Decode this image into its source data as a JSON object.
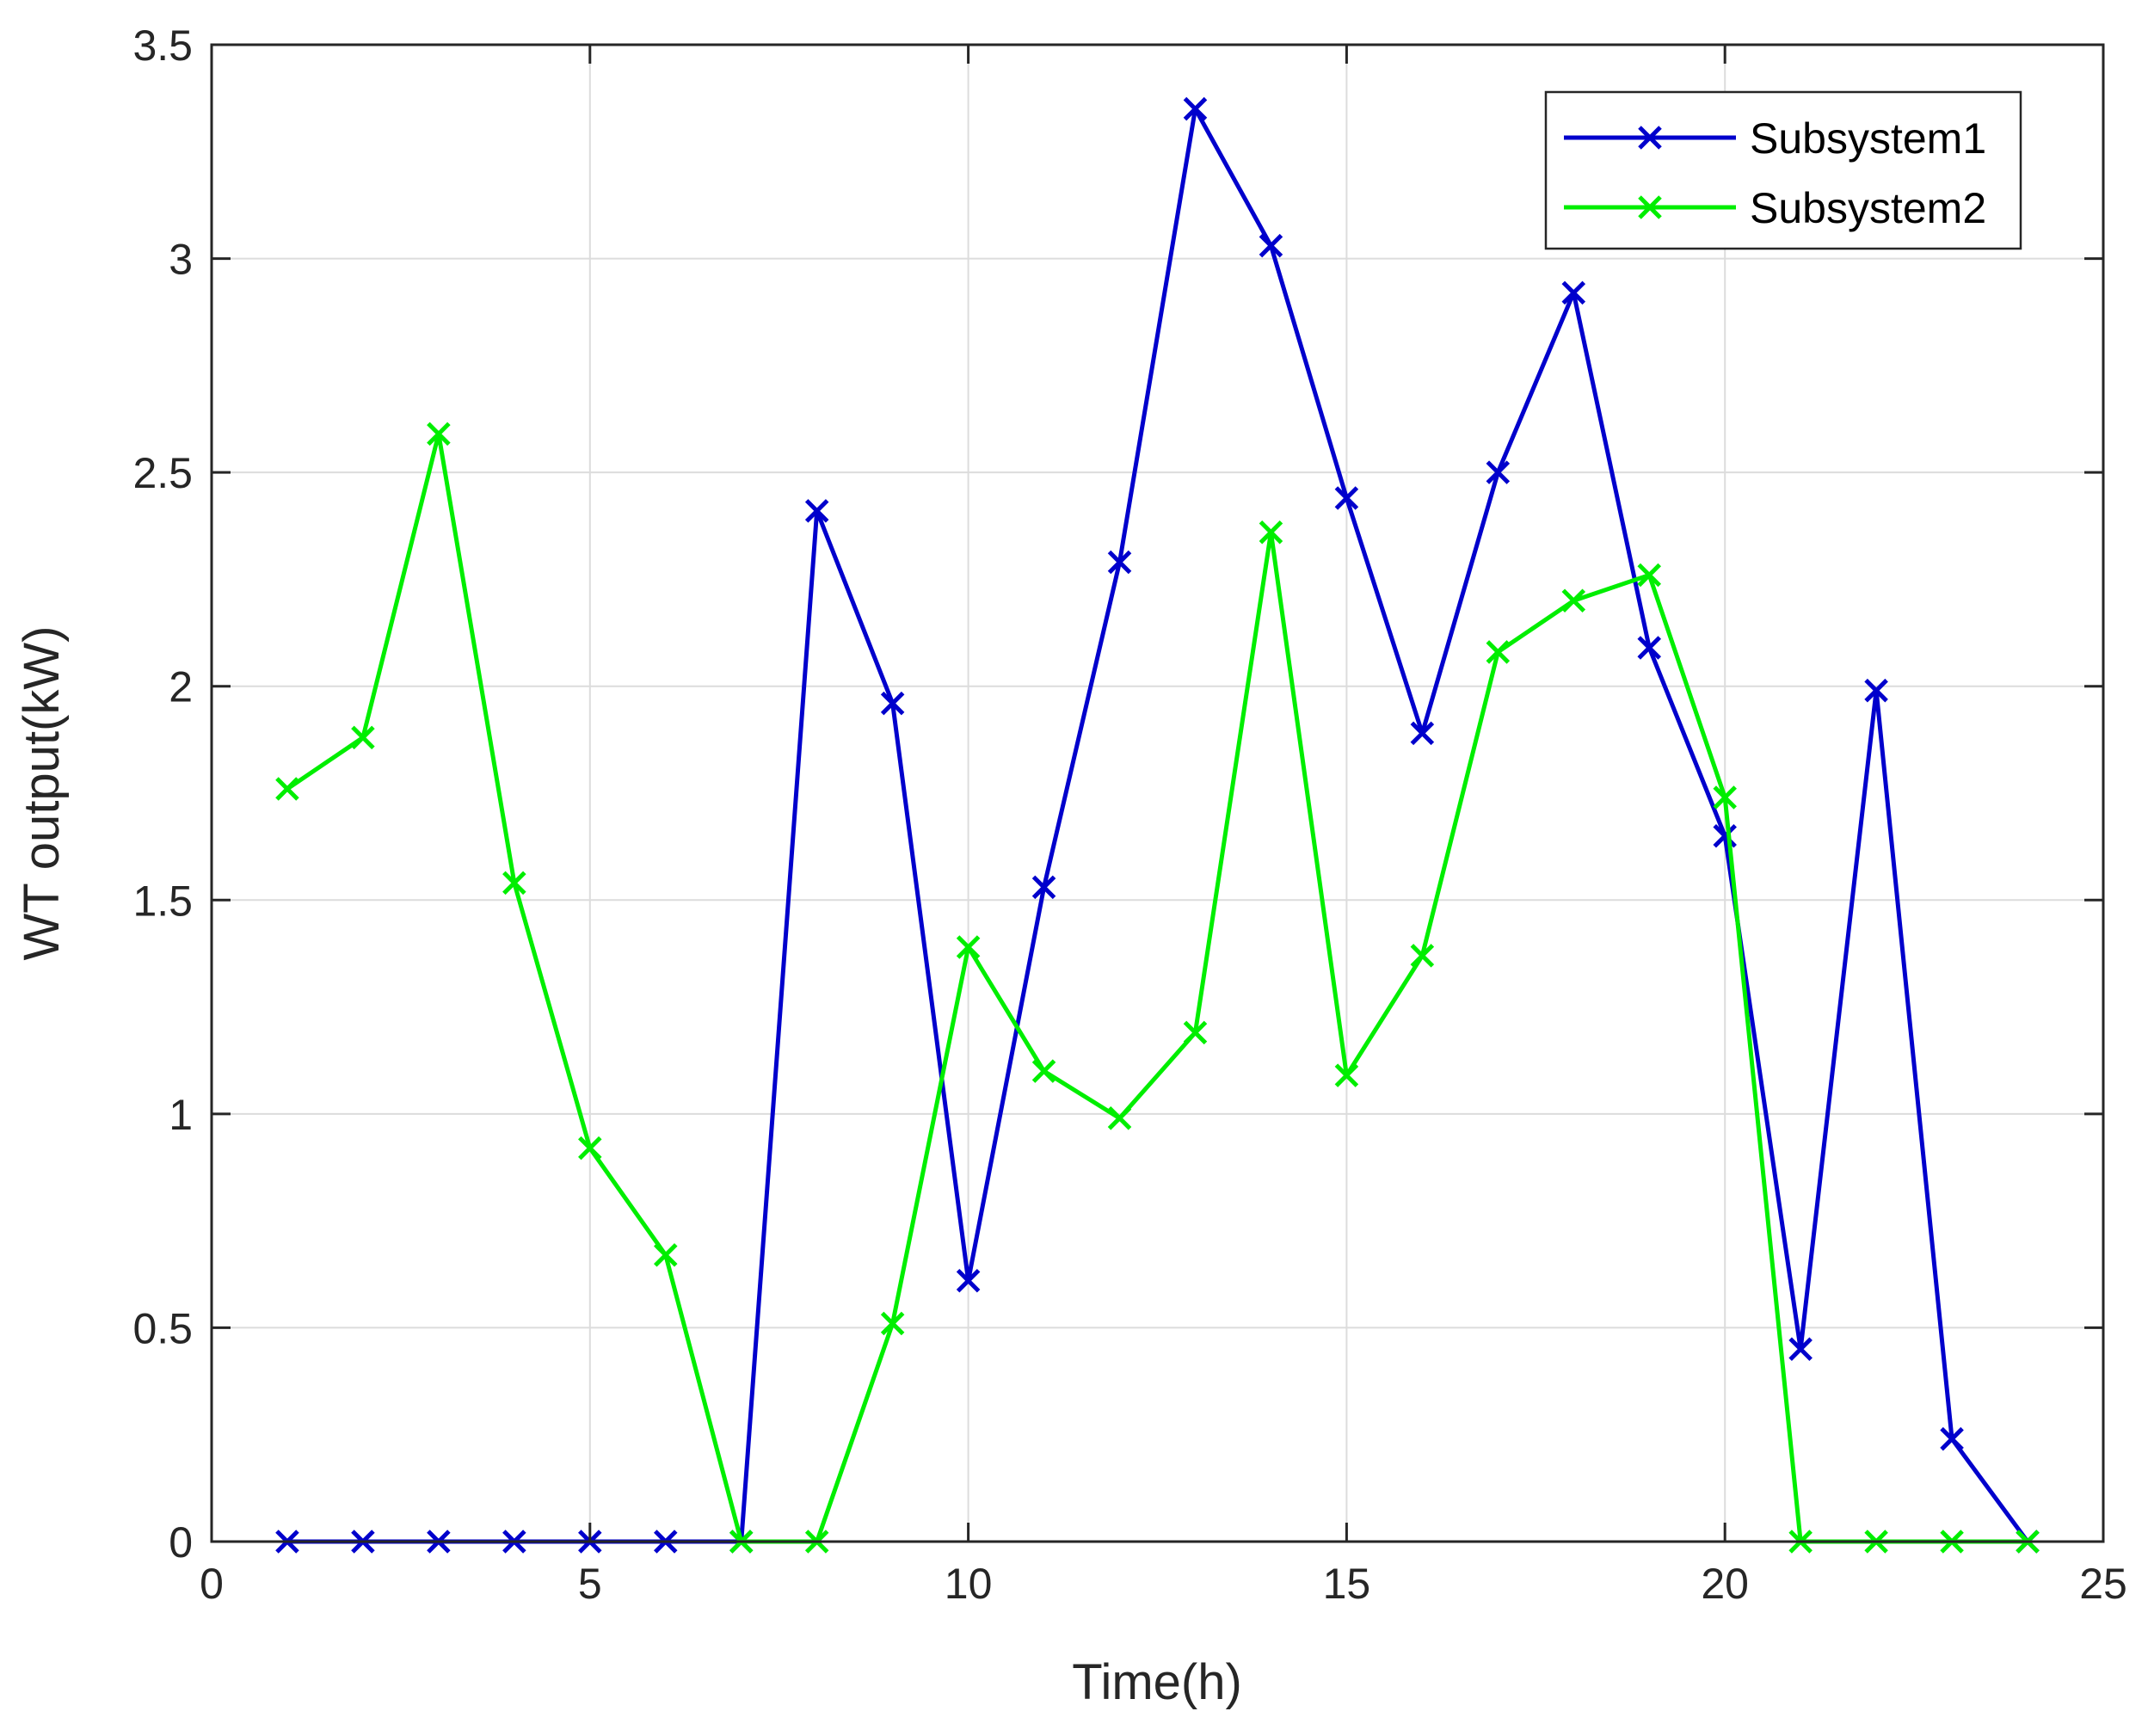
{
  "chart_data": {
    "type": "line",
    "title": "",
    "xlabel": "Time(h)",
    "ylabel": "WT output(kW)",
    "xlim": [
      0,
      25
    ],
    "ylim": [
      0,
      3.5
    ],
    "xticks": [
      0,
      5,
      10,
      15,
      20,
      25
    ],
    "yticks": [
      0,
      0.5,
      1,
      1.5,
      2,
      2.5,
      3,
      3.5
    ],
    "xtick_labels": [
      "0",
      "5",
      "10",
      "15",
      "20",
      "25"
    ],
    "ytick_labels": [
      "0",
      "0.5",
      "1",
      "1.5",
      "2",
      "2.5",
      "3",
      "3.5"
    ],
    "grid": true,
    "legend_position": "top-right",
    "marker": "x",
    "x": [
      1,
      2,
      3,
      4,
      5,
      6,
      7,
      8,
      9,
      10,
      11,
      12,
      13,
      14,
      15,
      16,
      17,
      18,
      19,
      20,
      21,
      22,
      23,
      24
    ],
    "series": [
      {
        "name": "Subsystem1",
        "color": "#0000CC",
        "values": [
          0,
          0,
          0,
          0,
          0,
          0,
          0,
          2.41,
          1.96,
          0.61,
          1.53,
          2.29,
          3.35,
          3.03,
          2.44,
          1.89,
          2.5,
          2.92,
          2.09,
          1.65,
          0.45,
          1.99,
          0.24,
          0
        ]
      },
      {
        "name": "Subsystem2",
        "color": "#00EE00",
        "values": [
          1.76,
          1.88,
          2.59,
          1.54,
          0.92,
          0.67,
          0,
          0,
          0.51,
          1.39,
          1.1,
          0.99,
          1.19,
          2.36,
          1.09,
          1.37,
          2.08,
          2.2,
          2.26,
          1.74,
          0,
          0,
          0,
          0
        ]
      }
    ]
  }
}
